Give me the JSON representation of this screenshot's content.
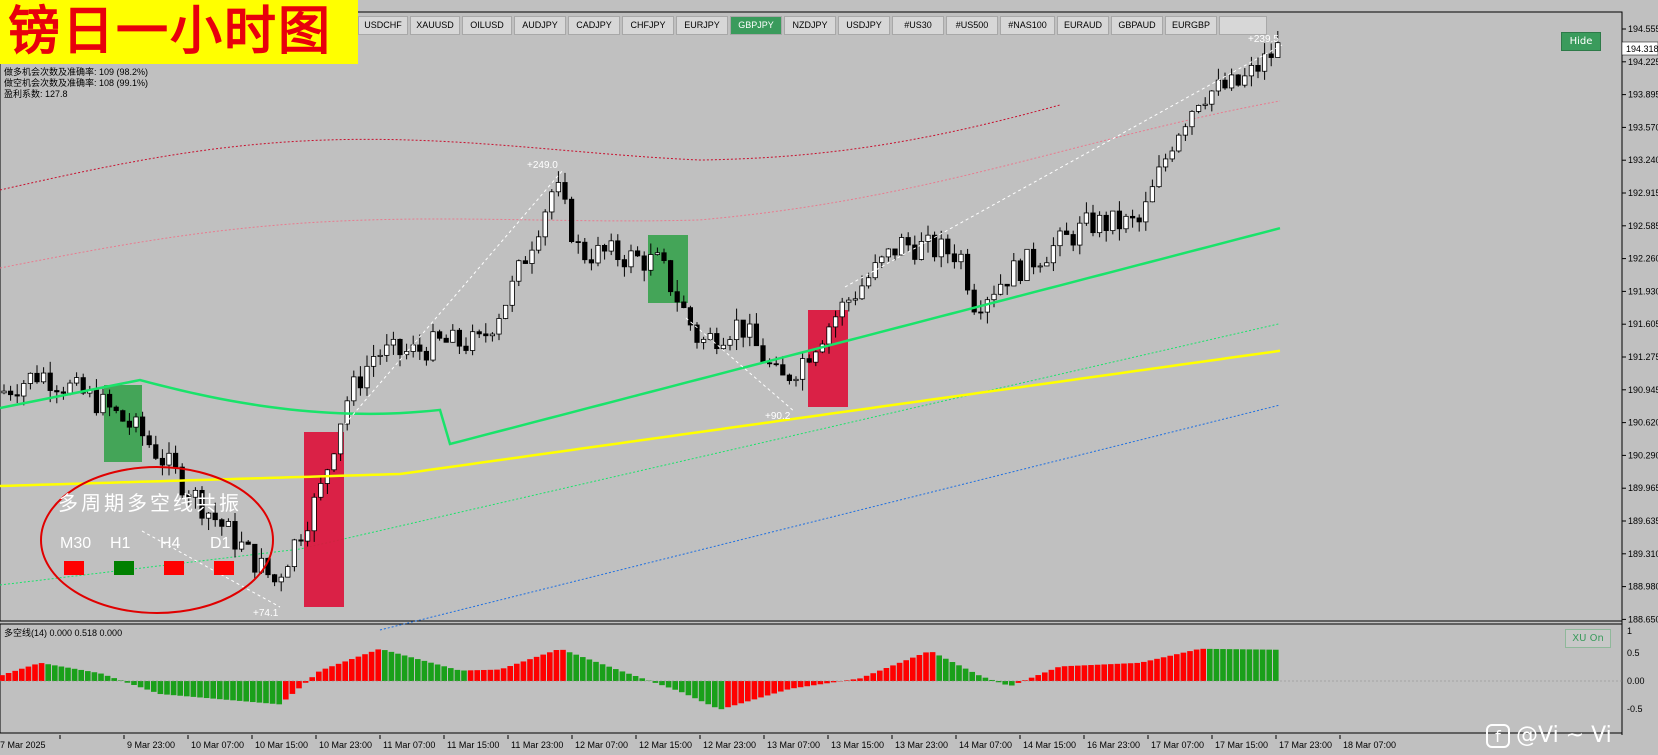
{
  "banner": {
    "title": "镑日一小时图"
  },
  "tabs": [
    {
      "label": "USDCHF",
      "active": false
    },
    {
      "label": "XAUUSD",
      "active": false
    },
    {
      "label": "OILUSD",
      "active": false
    },
    {
      "label": "AUDJPY",
      "active": false
    },
    {
      "label": "CADJPY",
      "active": false
    },
    {
      "label": "CHFJPY",
      "active": false
    },
    {
      "label": "EURJPY",
      "active": false
    },
    {
      "label": "GBPJPY",
      "active": true
    },
    {
      "label": "NZDJPY",
      "active": false
    },
    {
      "label": "USDJPY",
      "active": false
    },
    {
      "label": "#US30",
      "active": false
    },
    {
      "label": "#US500",
      "active": false
    },
    {
      "label": "#NAS100",
      "active": false
    },
    {
      "label": "EURAUD",
      "active": false
    },
    {
      "label": "GBPAUD",
      "active": false
    },
    {
      "label": "EURGBP",
      "active": false
    },
    {
      "label": "",
      "active": false
    }
  ],
  "info": {
    "line1": "做多机会次数及准确率: 109 (98.2%)",
    "line2": "做空机会次数及准确率: 108 (99.1%)",
    "line3": "盈利系数: 127.8"
  },
  "buttons": {
    "hide": "Hide",
    "xu_on": "XU On"
  },
  "price_axis": {
    "current": "194.318",
    "labels": [
      "194.555",
      "194.225",
      "193.895",
      "193.570",
      "193.240",
      "192.915",
      "192.585",
      "192.260",
      "191.930",
      "191.605",
      "191.275",
      "190.945",
      "190.620",
      "190.290",
      "189.965",
      "189.635",
      "189.310",
      "188.980",
      "188.650"
    ]
  },
  "time_axis": {
    "labels": [
      "7 Mar 2025",
      "9 Mar 23:00",
      "10 Mar 07:00",
      "10 Mar 15:00",
      "10 Mar 23:00",
      "11 Mar 07:00",
      "11 Mar 15:00",
      "11 Mar 23:00",
      "12 Mar 07:00",
      "12 Mar 15:00",
      "12 Mar 23:00",
      "13 Mar 07:00",
      "13 Mar 15:00",
      "13 Mar 23:00",
      "14 Mar 07:00",
      "14 Mar 15:00",
      "16 Mar 23:00",
      "17 Mar 07:00",
      "17 Mar 15:00",
      "17 Mar 23:00",
      "18 Mar 07:00"
    ]
  },
  "annotations": {
    "a1": "+249.0",
    "a2": "+90.2",
    "a3": "+74.1",
    "a4": "+239.5"
  },
  "panel_overlay": {
    "title": "多周期多空线共振",
    "timeframes": [
      {
        "label": "M30",
        "color": "#ff0000"
      },
      {
        "label": "H1",
        "color": "#008000"
      },
      {
        "label": "H4",
        "color": "#ff0000"
      },
      {
        "label": "D1",
        "color": "#ff0000"
      }
    ]
  },
  "indicator": {
    "title": "多空线(14) 0.000 0.518 0.000",
    "axis": [
      "1",
      "0.5",
      "0.00",
      "-0.5"
    ]
  },
  "watermark": {
    "icon": "facebook-icon",
    "text": "@Vi ~ Vi"
  },
  "colors": {
    "bull": "#ff0000",
    "bear": "#1aa01a",
    "ma_green": "#19e36a",
    "ma_yellow": "#ffff00",
    "tab_active": "#3a9b5c"
  }
}
